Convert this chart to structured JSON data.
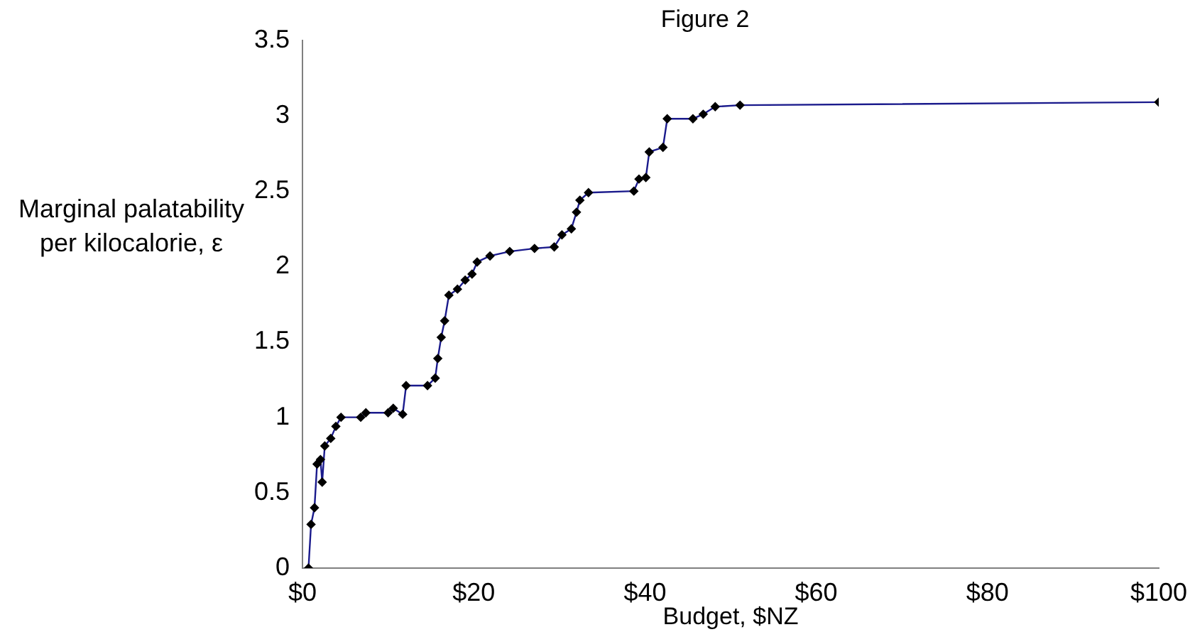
{
  "chart_data": {
    "type": "line",
    "title": "Figure 2",
    "xlabel": "Budget, $NZ",
    "ylabel": "Marginal palatability per kilocalorie, ε",
    "series": [
      {
        "color": "#1a1a8c",
        "x": [
          0.7,
          1.0,
          1.4,
          1.7,
          2.1,
          2.3,
          2.6,
          3.3,
          3.9,
          4.5,
          6.8,
          7.4,
          10.0,
          10.6,
          11.7,
          12.1,
          14.6,
          15.5,
          15.8,
          16.2,
          16.6,
          17.1,
          18.1,
          19.0,
          19.8,
          20.4,
          21.9,
          24.2,
          27.1,
          29.4,
          30.3,
          31.4,
          32.0,
          32.4,
          33.4,
          38.7,
          39.3,
          40.1,
          40.5,
          42.1,
          42.6,
          45.6,
          46.8,
          48.2,
          51.1,
          100
        ],
        "values": [
          0,
          0.29,
          0.4,
          0.69,
          0.72,
          0.57,
          0.81,
          0.86,
          0.94,
          1.0,
          1.0,
          1.03,
          1.03,
          1.06,
          1.02,
          1.21,
          1.21,
          1.26,
          1.39,
          1.53,
          1.64,
          1.81,
          1.85,
          1.91,
          1.95,
          2.03,
          2.07,
          2.1,
          2.12,
          2.13,
          2.21,
          2.25,
          2.36,
          2.44,
          2.49,
          2.5,
          2.58,
          2.59,
          2.76,
          2.79,
          2.98,
          2.98,
          3.01,
          3.06,
          3.07,
          3.09
        ]
      }
    ],
    "xlim": [
      0,
      100
    ],
    "xticks": [
      {
        "value": 0,
        "label": "$0"
      },
      {
        "value": 20,
        "label": "$20"
      },
      {
        "value": 40,
        "label": "$40"
      },
      {
        "value": 60,
        "label": "$60"
      },
      {
        "value": 80,
        "label": "$80"
      },
      {
        "value": 100,
        "label": "$100"
      }
    ],
    "ylim": [
      0,
      3.5
    ],
    "yticks": [
      0,
      0.5,
      1,
      1.5,
      2,
      2.5,
      3,
      3.5
    ],
    "grid": false,
    "legend": false,
    "marker": "diamond",
    "line_style": "solid"
  }
}
